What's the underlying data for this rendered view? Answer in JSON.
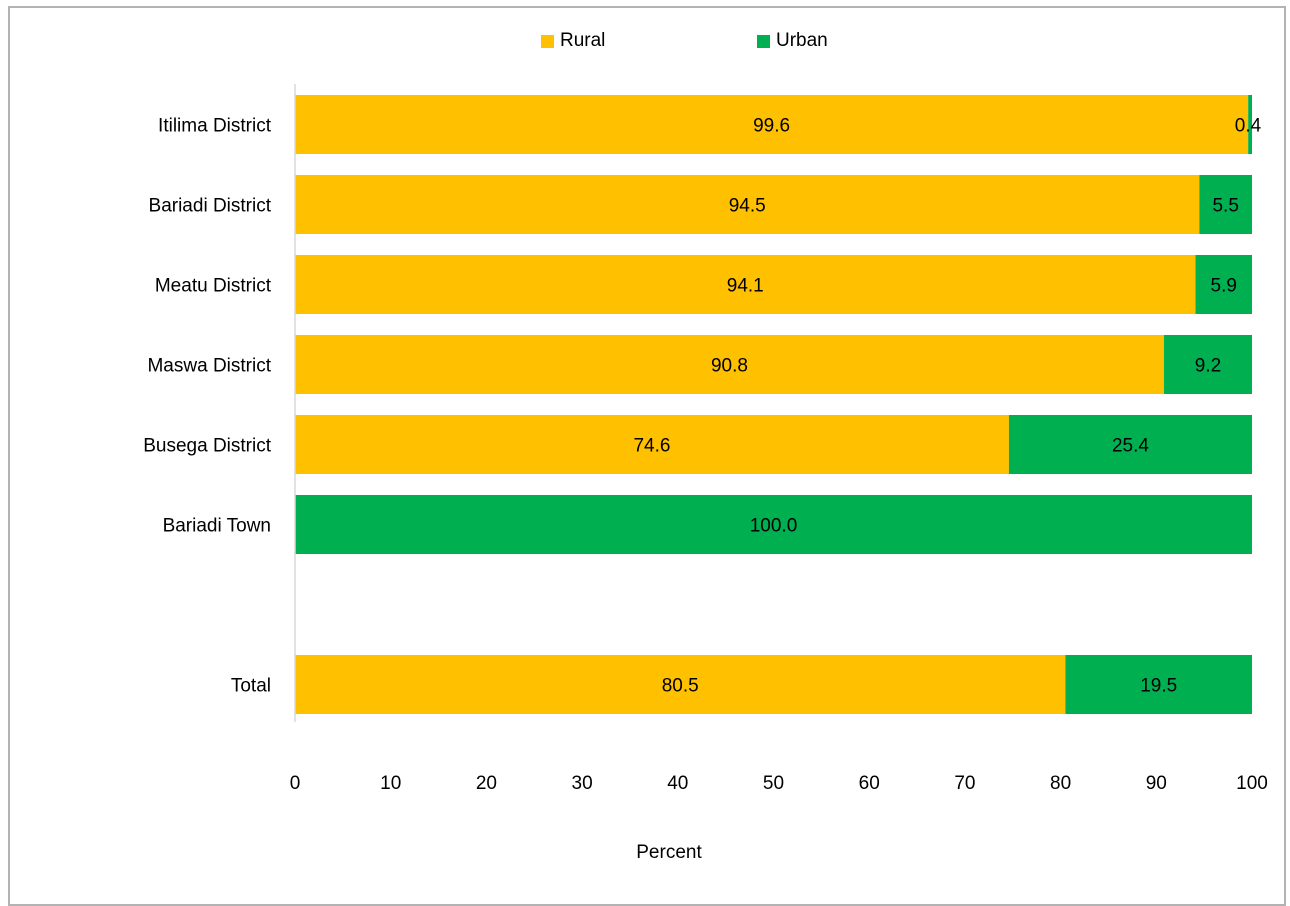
{
  "chart_data": {
    "type": "bar",
    "orientation": "horizontal",
    "stacked": true,
    "categories": [
      "Itilima District",
      "Bariadi District",
      "Meatu District",
      "Maswa District",
      "Busega District",
      "Bariadi Town",
      "",
      "Total"
    ],
    "series": [
      {
        "name": "Rural",
        "color": "#FFC000",
        "values": [
          99.6,
          94.5,
          94.1,
          90.8,
          74.6,
          0,
          null,
          80.5
        ],
        "labels": [
          "99.6",
          "94.5",
          "94.1",
          "90.8",
          "74.6",
          "",
          "",
          "80.5"
        ]
      },
      {
        "name": "Urban",
        "color": "#00B050",
        "values": [
          0.4,
          5.5,
          5.9,
          9.2,
          25.4,
          100.0,
          null,
          19.5
        ],
        "labels": [
          "0.4",
          "5.5",
          "5.9",
          "9.2",
          "25.4",
          "100.0",
          "",
          "19.5"
        ]
      }
    ],
    "xlabel": "Percent",
    "xlim": [
      0,
      100
    ],
    "xticks": [
      "0",
      "10",
      "20",
      "30",
      "40",
      "50",
      "60",
      "70",
      "80",
      "90",
      "100"
    ],
    "grid": false,
    "legend_position": "top-center"
  }
}
